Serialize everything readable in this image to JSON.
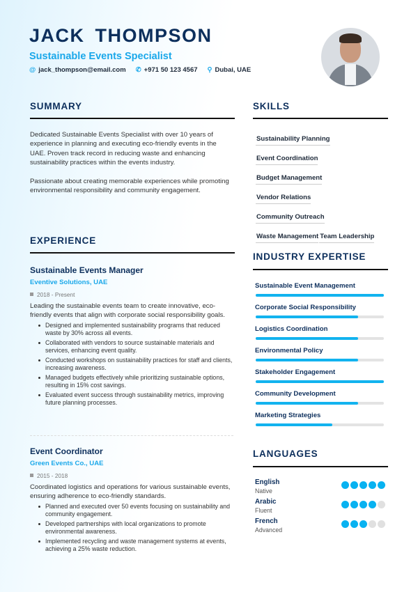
{
  "header": {
    "name": "JACK THOMPSON",
    "title": "Sustainable Events Specialist",
    "email": "jack_thompson@email.com",
    "phone": "+971 50 123 4567",
    "location": "Dubai, UAE",
    "icons": {
      "email": "at-icon",
      "phone": "phone-icon",
      "location": "map-pin-icon"
    }
  },
  "summary": {
    "heading": "SUMMARY",
    "paragraphs": [
      "Dedicated Sustainable Events Specialist with over 10 years of experience in planning and executing eco-friendly events in the UAE. Proven track record in reducing waste and enhancing sustainability practices within the events industry.",
      "Passionate about creating memorable experiences while promoting environmental responsibility and community engagement."
    ]
  },
  "experience": {
    "heading": "EXPERIENCE",
    "jobs": [
      {
        "title": "Sustainable Events Manager",
        "company": "Eventive Solutions, UAE",
        "dates": "2018 - Present",
        "description": "Leading the sustainable events team to create innovative, eco-friendly events that align with corporate social responsibility goals.",
        "bullets": [
          "Designed and implemented sustainability programs that reduced waste by 30% across all events.",
          "Collaborated with vendors to source sustainable materials and services, enhancing event quality.",
          "Conducted workshops on sustainability practices for staff and clients, increasing awareness.",
          "Managed budgets effectively while prioritizing sustainable options, resulting in 15% cost savings.",
          "Evaluated event success through sustainability metrics, improving future planning processes."
        ]
      },
      {
        "title": "Event Coordinator",
        "company": "Green Events Co., UAE",
        "dates": "2015 - 2018",
        "description": "Coordinated logistics and operations for various sustainable events, ensuring adherence to eco-friendly standards.",
        "bullets": [
          "Planned and executed over 50 events focusing on sustainability and community engagement.",
          "Developed partnerships with local organizations to promote environmental awareness.",
          "Implemented recycling and waste management systems at events, achieving a 25% waste reduction."
        ]
      }
    ]
  },
  "skills": {
    "heading": "SKILLS",
    "items": [
      "Sustainability Planning",
      "Event Coordination",
      "Budget Management",
      "Vendor Relations",
      "Community Outreach",
      "Waste Management",
      "Team Leadership"
    ]
  },
  "expertise": {
    "heading": "INDUSTRY EXPERTISE",
    "items": [
      {
        "label": "Sustainable Event Management",
        "level": 100
      },
      {
        "label": "Corporate Social Responsibility",
        "level": 80
      },
      {
        "label": "Logistics Coordination",
        "level": 80
      },
      {
        "label": "Environmental Policy",
        "level": 80
      },
      {
        "label": "Stakeholder Engagement",
        "level": 100
      },
      {
        "label": "Community Development",
        "level": 80
      },
      {
        "label": "Marketing Strategies",
        "level": 60
      }
    ]
  },
  "languages": {
    "heading": "LANGUAGES",
    "items": [
      {
        "name": "English",
        "level_text": "Native",
        "dots": 5
      },
      {
        "name": "Arabic",
        "level_text": "Fluent",
        "dots": 4
      },
      {
        "name": "French",
        "level_text": "Advanced",
        "dots": 3
      }
    ]
  },
  "colors": {
    "navy": "#0d2f5c",
    "accent": "#12b3ef"
  }
}
